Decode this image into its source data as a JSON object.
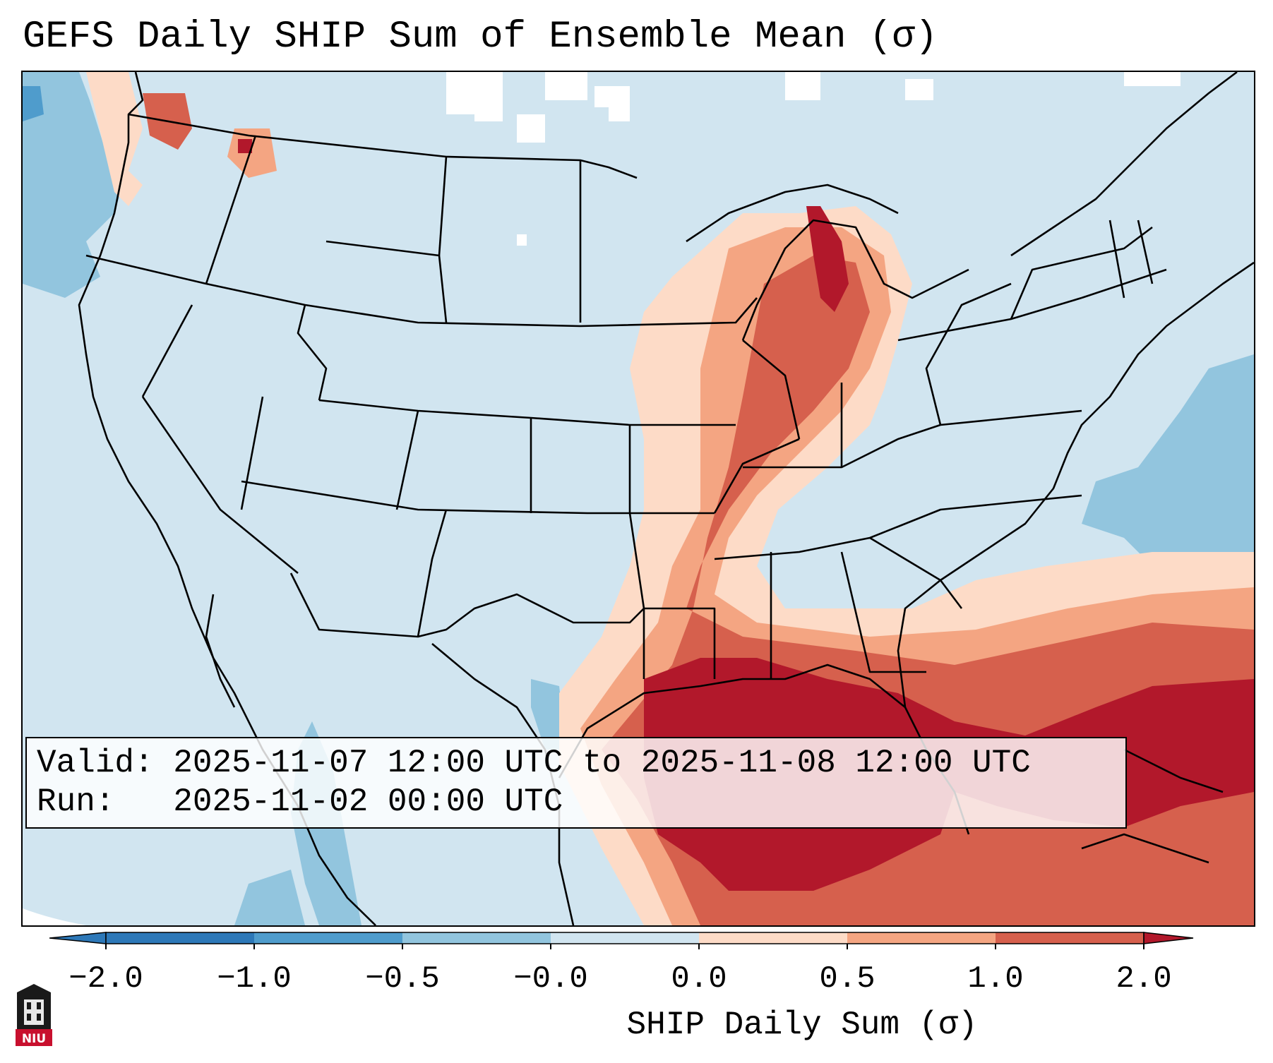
{
  "header": {
    "title": "GEFS Daily SHIP Sum of Ensemble Mean (σ)"
  },
  "info": {
    "valid_label": "Valid:",
    "valid_value": "2025-11-07 12:00 UTC to 2025-11-08 12:00 UTC",
    "run_label": "Run:",
    "run_value": "2025-11-02 00:00 UTC"
  },
  "colorbar": {
    "label": "SHIP Daily Sum (σ)",
    "ticks": [
      "−2.0",
      "−1.0",
      "−0.5",
      "−0.0",
      "0.0",
      "0.5",
      "1.0",
      "2.0"
    ],
    "bin_colors": [
      "#2d78b8",
      "#4f9ccc",
      "#92c5de",
      "#d1e5f0",
      "#fddbc7",
      "#f4a582",
      "#d6604d",
      "#b2182b"
    ],
    "extend": "both"
  },
  "map": {
    "projection": "lambert-conformal",
    "region": "CONUS",
    "colors": {
      "neutral_blue": "#d1e5f0",
      "light_blue": "#92c5de",
      "mid_blue": "#4f9ccc",
      "light_red": "#fddbc7",
      "mid_red": "#f4a582",
      "red": "#d6604d",
      "dark_red": "#b2182b",
      "missing": "#ffffff"
    }
  },
  "logo": {
    "text": "NIU"
  }
}
